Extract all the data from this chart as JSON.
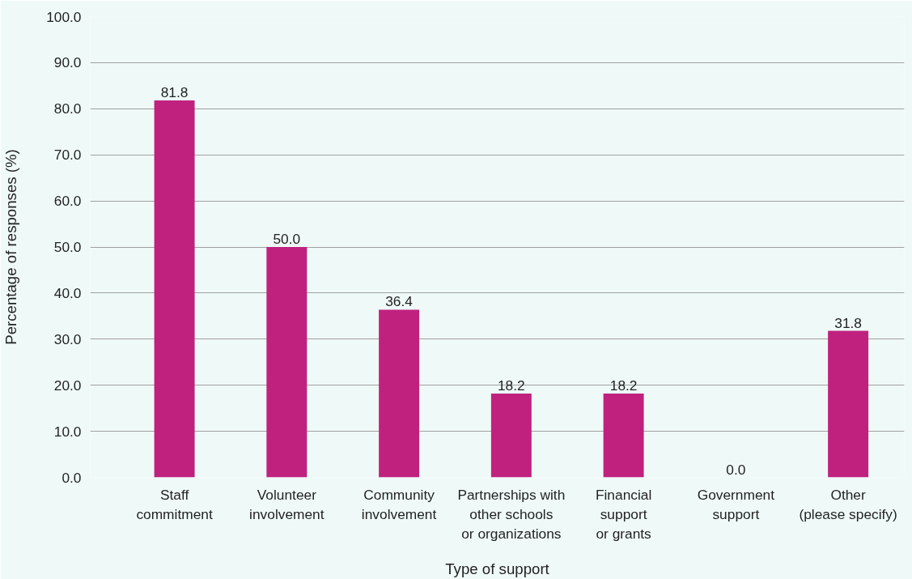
{
  "chart_data": {
    "type": "bar",
    "xlabel": "Type of support",
    "ylabel": "Percentage of responses (%)",
    "categories": [
      "Staff\ncommitment",
      "Volunteer\ninvolvement",
      "Community\ninvolvement",
      "Partnerships with\nother schools\nor organizations",
      "Financial\nsupport\nor grants",
      "Government\nsupport",
      "Other\n(please specify)"
    ],
    "values": [
      81.8,
      50.0,
      36.4,
      18.2,
      18.2,
      0.0,
      31.8
    ],
    "value_labels": [
      "81.8",
      "50.0",
      "36.4",
      "18.2",
      "18.2",
      "0.0",
      "31.8"
    ],
    "color": "#c0217f",
    "ylim": [
      0,
      100
    ],
    "yticks": [
      {
        "value": 0,
        "label": "0.0"
      },
      {
        "value": 10,
        "label": "10.0"
      },
      {
        "value": 20,
        "label": "20.0"
      },
      {
        "value": 30,
        "label": "30.0"
      },
      {
        "value": 40,
        "label": "40.0"
      },
      {
        "value": 50,
        "label": "50.0"
      },
      {
        "value": 60,
        "label": "60.0"
      },
      {
        "value": 70,
        "label": "70.0"
      },
      {
        "value": 80,
        "label": "80.0"
      },
      {
        "value": 90,
        "label": "90.0"
      },
      {
        "value": 100,
        "label": "100.0"
      }
    ],
    "grid": "y"
  }
}
